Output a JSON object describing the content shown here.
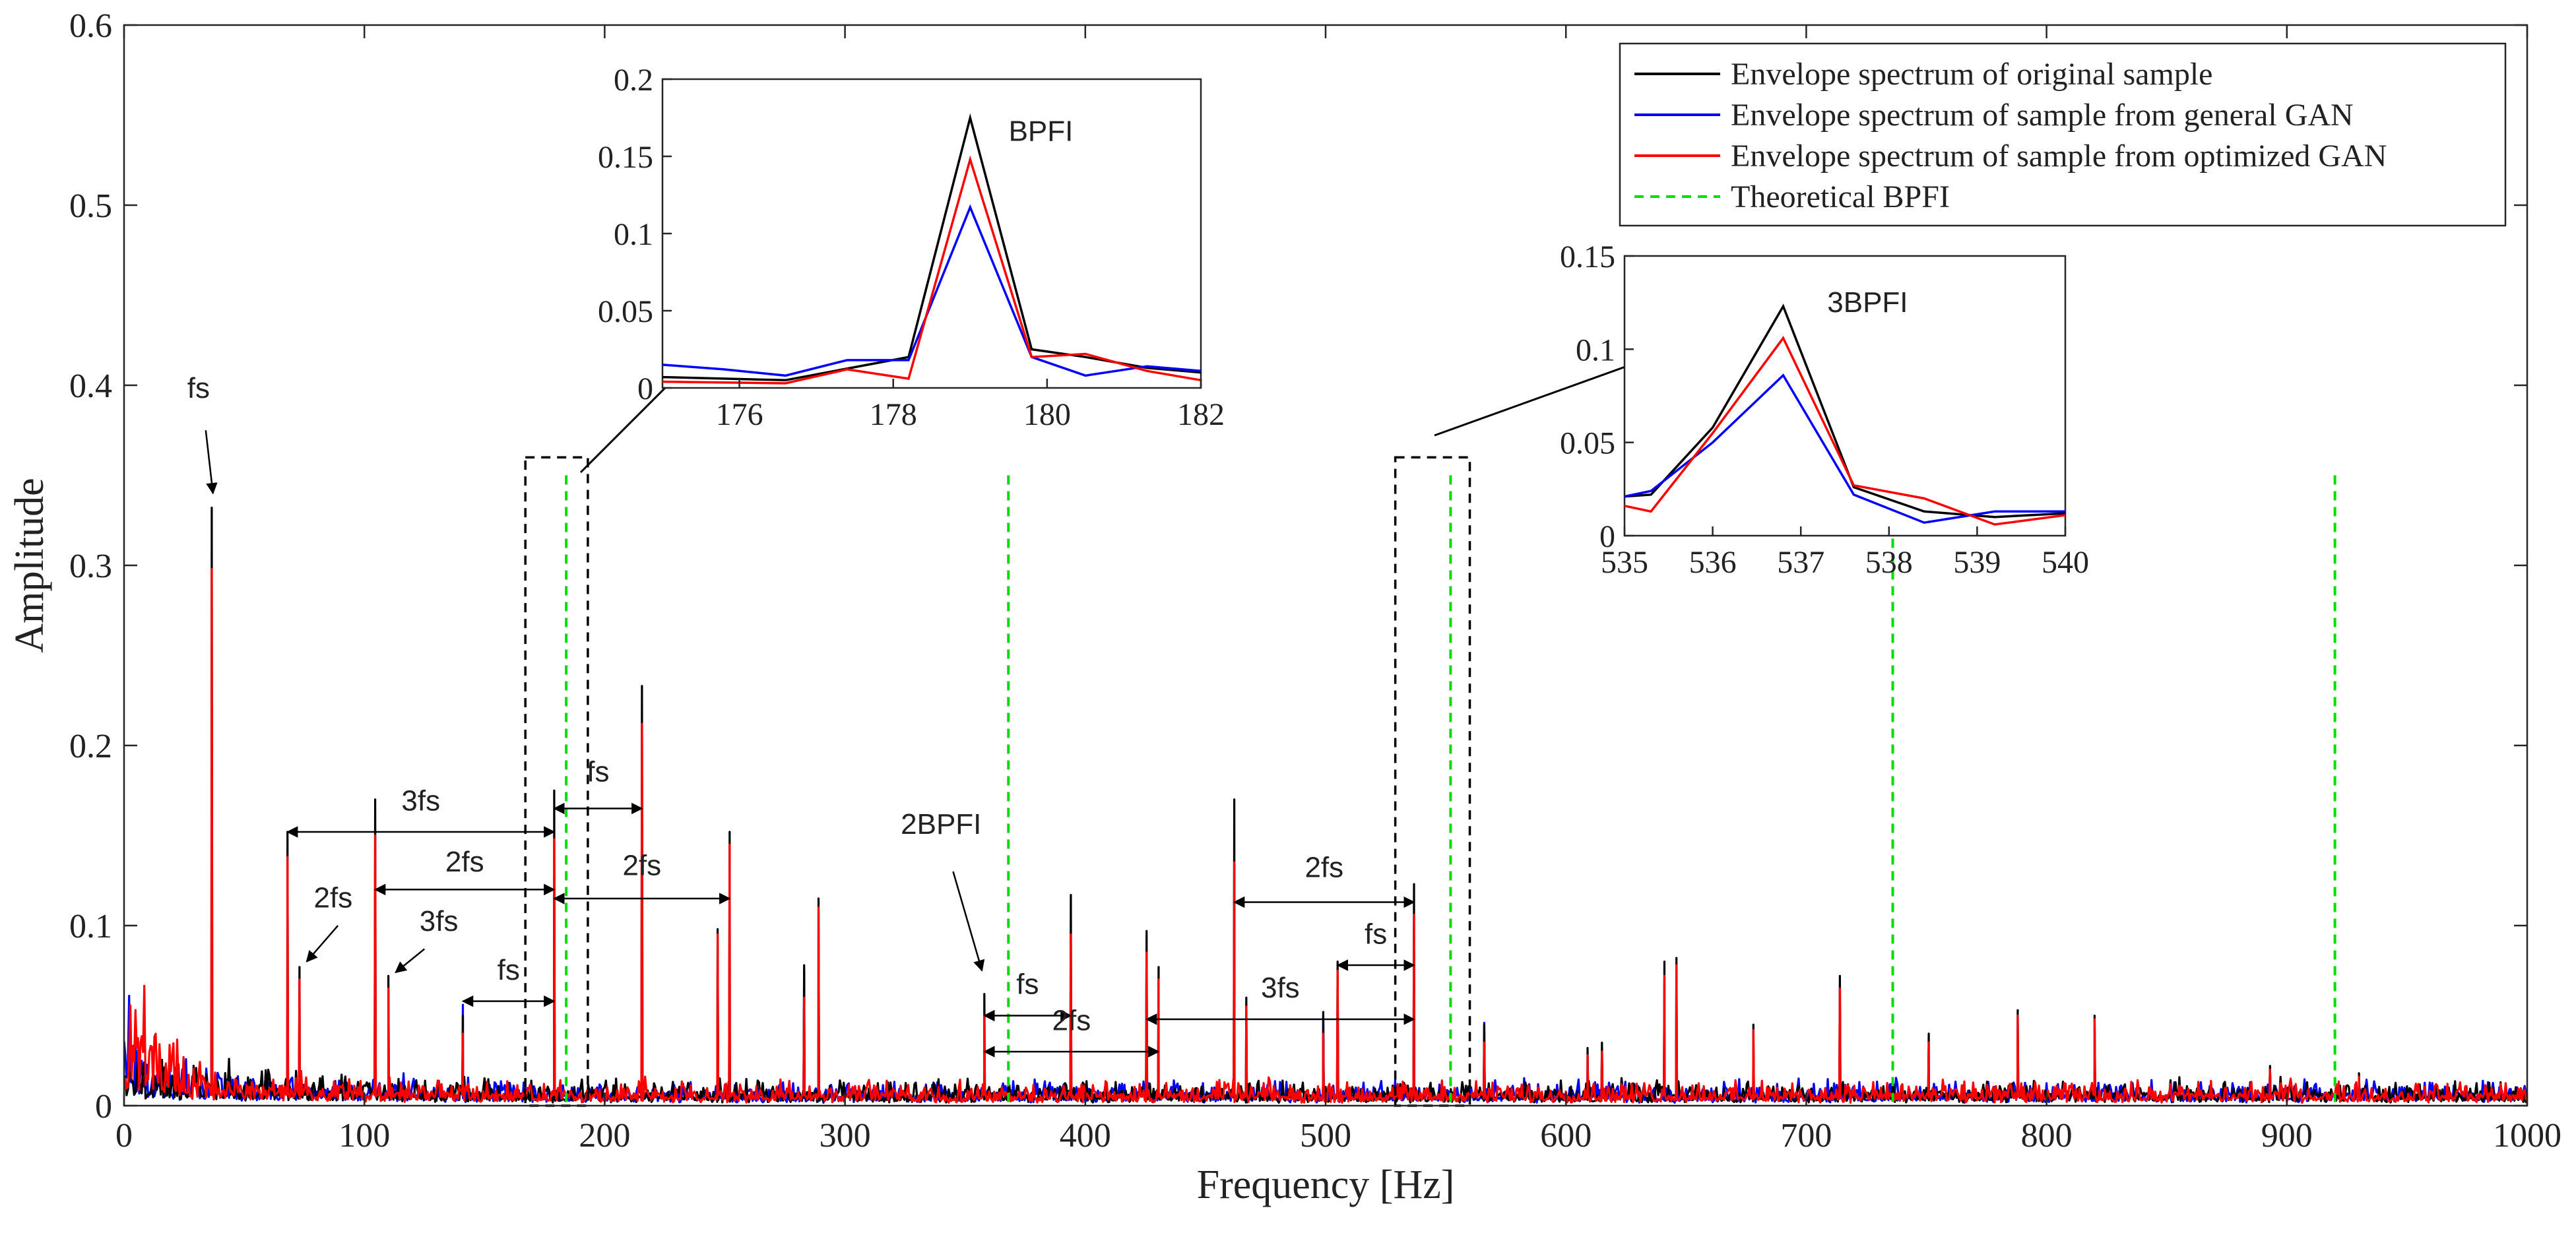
{
  "chart_data": {
    "type": "line",
    "xlabel": "Frequency [Hz]",
    "ylabel": "Amplitude",
    "xlim": [
      0,
      1000
    ],
    "ylim": [
      0,
      0.6
    ],
    "xticks": [
      0,
      100,
      200,
      300,
      400,
      500,
      600,
      700,
      800,
      900,
      1000
    ],
    "yticks": [
      0,
      0.1,
      0.2,
      0.3,
      0.4,
      0.5,
      0.6
    ],
    "grid": false,
    "legend_position": "top-right",
    "legend": [
      {
        "label": "Envelope spectrum of original sample",
        "color": "#000000",
        "style": "solid"
      },
      {
        "label": "Envelope spectrum of sample from general GAN",
        "color": "#0000ff",
        "style": "solid"
      },
      {
        "label": "Envelope spectrum of sample from optimized GAN",
        "color": "#ff0000",
        "style": "solid"
      },
      {
        "label": "Theoretical BPFI",
        "color": "#00dd00",
        "style": "dashed"
      }
    ],
    "theoretical_bpfi_lines": [
      184,
      368,
      552,
      736,
      920
    ],
    "theoretical_bpfi_top": 0.35,
    "peaks": [
      {
        "x": 36.5,
        "values": [
          0.332,
          0.1,
          0.298
        ]
      },
      {
        "x": 68,
        "values": [
          0.152,
          0.06,
          0.138
        ]
      },
      {
        "x": 73,
        "values": [
          0.077,
          0.03,
          0.07
        ]
      },
      {
        "x": 104.5,
        "values": [
          0.17,
          0.08,
          0.15
        ]
      },
      {
        "x": 110,
        "values": [
          0.072,
          0.03,
          0.065
        ]
      },
      {
        "x": 141,
        "values": [
          0.05,
          0.056,
          0.04
        ]
      },
      {
        "x": 179,
        "values": [
          0.175,
          0.117,
          0.148
        ]
      },
      {
        "x": 215.5,
        "values": [
          0.233,
          0.08,
          0.212
        ]
      },
      {
        "x": 247,
        "values": [
          0.098,
          0.03,
          0.095
        ]
      },
      {
        "x": 252,
        "values": [
          0.152,
          0.04,
          0.145
        ]
      },
      {
        "x": 283,
        "values": [
          0.078,
          0.075,
          0.06
        ]
      },
      {
        "x": 289,
        "values": [
          0.115,
          0.04,
          0.11
        ]
      },
      {
        "x": 358,
        "values": [
          0.062,
          0.03,
          0.05
        ]
      },
      {
        "x": 394,
        "values": [
          0.117,
          0.05,
          0.095
        ]
      },
      {
        "x": 425.5,
        "values": [
          0.097,
          0.05,
          0.085
        ]
      },
      {
        "x": 430.5,
        "values": [
          0.077,
          0.03,
          0.07
        ]
      },
      {
        "x": 462,
        "values": [
          0.17,
          0.05,
          0.135
        ]
      },
      {
        "x": 467,
        "values": [
          0.06,
          0.03,
          0.055
        ]
      },
      {
        "x": 499,
        "values": [
          0.052,
          0.05,
          0.04
        ]
      },
      {
        "x": 505,
        "values": [
          0.08,
          0.03,
          0.075
        ]
      },
      {
        "x": 536.8,
        "values": [
          0.123,
          0.086,
          0.106
        ]
      },
      {
        "x": 566,
        "values": [
          0.045,
          0.046,
          0.035
        ]
      },
      {
        "x": 609,
        "values": [
          0.032,
          0.02,
          0.028
        ]
      },
      {
        "x": 615,
        "values": [
          0.035,
          0.02,
          0.03
        ]
      },
      {
        "x": 641,
        "values": [
          0.08,
          0.04,
          0.072
        ]
      },
      {
        "x": 646,
        "values": [
          0.082,
          0.03,
          0.078
        ]
      },
      {
        "x": 678,
        "values": [
          0.045,
          0.02,
          0.042
        ]
      },
      {
        "x": 714,
        "values": [
          0.072,
          0.03,
          0.065
        ]
      },
      {
        "x": 751,
        "values": [
          0.04,
          0.02,
          0.035
        ]
      },
      {
        "x": 788,
        "values": [
          0.053,
          0.02,
          0.05
        ]
      },
      {
        "x": 820,
        "values": [
          0.05,
          0.02,
          0.048
        ]
      },
      {
        "x": 893,
        "values": [
          0.022,
          0.02,
          0.02
        ]
      },
      {
        "x": 930,
        "values": [
          0.018,
          0.015,
          0.016
        ]
      }
    ],
    "annotations": [
      {
        "label": "fs",
        "text_x": 31,
        "text_y": 0.393,
        "arrow_from": [
          34,
          0.375
        ],
        "arrow_to": [
          37,
          0.34
        ]
      },
      {
        "label": "2fs",
        "text_x": 87,
        "text_y": 0.11,
        "arrow_from": [
          89,
          0.1
        ],
        "arrow_to": [
          76,
          0.08
        ]
      },
      {
        "label": "3fs",
        "text_x": 131,
        "text_y": 0.097,
        "arrow_from": [
          125,
          0.087
        ],
        "arrow_to": [
          113,
          0.074
        ]
      },
      {
        "label": "2BPFI",
        "text_x": 340,
        "text_y": 0.151,
        "arrow_from": [
          345,
          0.13
        ],
        "arrow_to": [
          357,
          0.075
        ]
      },
      {
        "label": "BPFI",
        "inset": 0,
        "text_x": 179.5,
        "text_y": 0.16
      },
      {
        "label": "3BPFI",
        "inset": 1,
        "text_x": 537.3,
        "text_y": 0.12
      }
    ],
    "span_annotations": [
      {
        "label": "3fs",
        "x1": 68,
        "x2": 179,
        "y": 0.152,
        "text_y": 0.164
      },
      {
        "label": "2fs",
        "x1": 104.5,
        "x2": 179,
        "y": 0.12,
        "text_y": 0.13
      },
      {
        "label": "fs",
        "x1": 141,
        "x2": 179,
        "y": 0.058,
        "text_y": 0.07
      },
      {
        "label": "fs",
        "x1": 179,
        "x2": 215.5,
        "y": 0.165,
        "text_y": 0.18
      },
      {
        "label": "2fs",
        "x1": 179,
        "x2": 252,
        "y": 0.115,
        "text_y": 0.128
      },
      {
        "label": "fs",
        "x1": 358,
        "x2": 394,
        "y": 0.05,
        "text_y": 0.062
      },
      {
        "label": "2fs",
        "x1": 358,
        "x2": 430.5,
        "y": 0.03,
        "text_y": 0.042
      },
      {
        "label": "3fs",
        "x1": 425.5,
        "x2": 536.8,
        "y": 0.048,
        "text_y": 0.06
      },
      {
        "label": "fs",
        "x1": 505,
        "x2": 536.8,
        "y": 0.078,
        "text_y": 0.09
      },
      {
        "label": "2fs",
        "x1": 462,
        "x2": 536.8,
        "y": 0.113,
        "text_y": 0.127
      }
    ],
    "zoom_boxes": [
      {
        "x1": 167,
        "x2": 193,
        "y1": 0,
        "y2": 0.36
      },
      {
        "x1": 529,
        "x2": 560,
        "y1": 0,
        "y2": 0.36
      }
    ],
    "insets": [
      {
        "xlim": [
          175,
          182
        ],
        "ylim": [
          0,
          0.2
        ],
        "xticks": [
          176,
          178,
          180,
          182
        ],
        "yticks": [
          0,
          0.05,
          0.1,
          0.15,
          0.2
        ],
        "series": [
          {
            "name": "Envelope spectrum of original sample",
            "color": "#000000",
            "x": [
              175,
              176.6,
              178.2,
              179,
              179.8,
              180.5,
              181.3,
              182
            ],
            "y": [
              0.007,
              0.005,
              0.02,
              0.175,
              0.025,
              0.02,
              0.013,
              0.01
            ]
          },
          {
            "name": "Envelope spectrum of sample from general GAN",
            "color": "#0000ff",
            "x": [
              175,
              175.8,
              176.6,
              177.4,
              178.2,
              179,
              179.8,
              180.5,
              181.3,
              182
            ],
            "y": [
              0.015,
              0.012,
              0.008,
              0.018,
              0.018,
              0.117,
              0.02,
              0.008,
              0.014,
              0.011
            ]
          },
          {
            "name": "Envelope spectrum of sample from optimized GAN",
            "color": "#ff0000",
            "x": [
              175,
              176.6,
              177.4,
              178.2,
              179,
              179.8,
              180.5,
              181.3,
              182
            ],
            "y": [
              0.004,
              0.003,
              0.012,
              0.006,
              0.148,
              0.02,
              0.022,
              0.011,
              0.005
            ]
          }
        ]
      },
      {
        "xlim": [
          535,
          540
        ],
        "ylim": [
          0,
          0.15
        ],
        "xticks": [
          535,
          536,
          537,
          538,
          539,
          540
        ],
        "yticks": [
          0,
          0.05,
          0.1,
          0.15
        ],
        "series": [
          {
            "name": "Envelope spectrum of original sample",
            "color": "#000000",
            "x": [
              535,
              535.3,
              536,
              536.8,
              537.6,
              538.4,
              539.2,
              540
            ],
            "y": [
              0.021,
              0.022,
              0.058,
              0.123,
              0.026,
              0.013,
              0.01,
              0.012
            ]
          },
          {
            "name": "Envelope spectrum of sample from general GAN",
            "color": "#0000ff",
            "x": [
              535,
              535.3,
              536,
              536.8,
              537.6,
              538.4,
              539.2,
              540
            ],
            "y": [
              0.021,
              0.024,
              0.05,
              0.086,
              0.022,
              0.007,
              0.013,
              0.013
            ]
          },
          {
            "name": "Envelope spectrum of sample from optimized GAN",
            "color": "#ff0000",
            "x": [
              535,
              535.3,
              536,
              536.8,
              537.6,
              538.4,
              539.2,
              540
            ],
            "y": [
              0.016,
              0.013,
              0.055,
              0.106,
              0.027,
              0.02,
              0.006,
              0.011
            ]
          }
        ]
      }
    ]
  }
}
